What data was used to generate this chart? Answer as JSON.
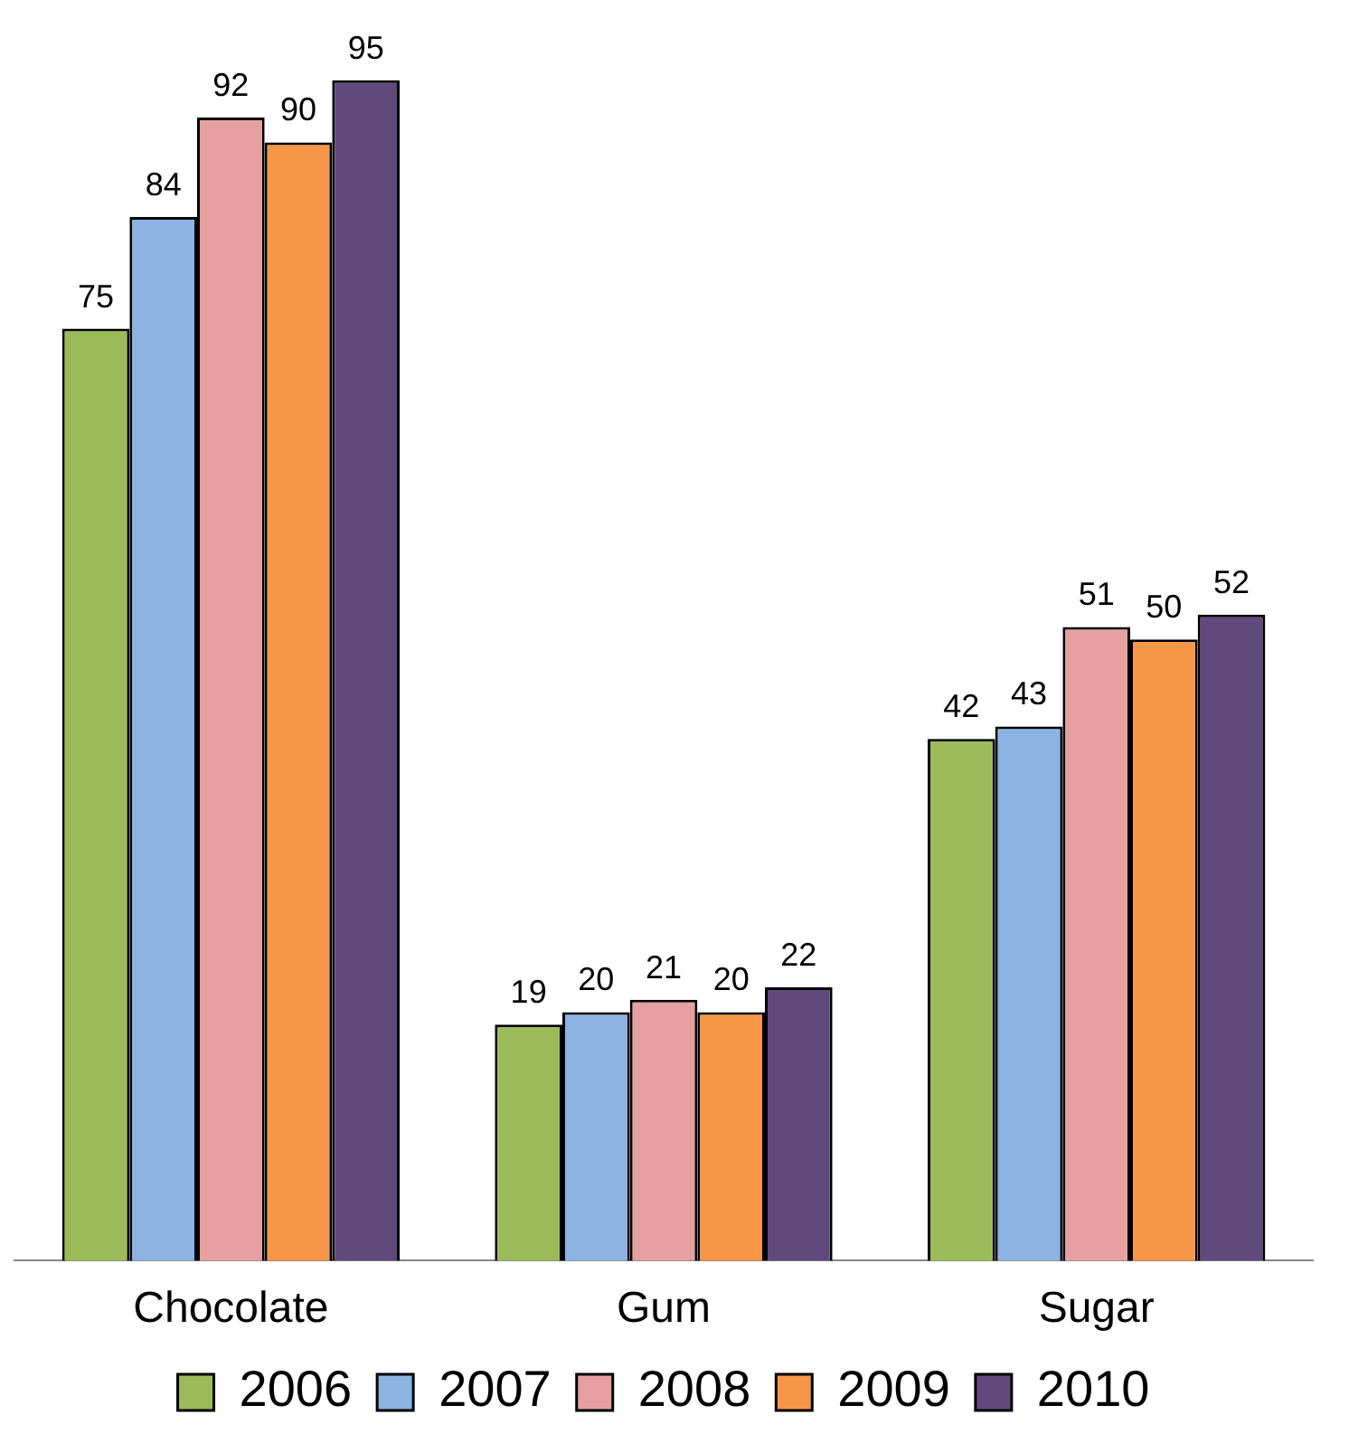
{
  "chart_data": {
    "type": "bar",
    "categories": [
      "Chocolate",
      "Gum",
      "Sugar"
    ],
    "series": [
      {
        "name": "2006",
        "color": "#9bbb59",
        "values": [
          75,
          19,
          42
        ]
      },
      {
        "name": "2007",
        "color": "#8db3e2",
        "values": [
          84,
          20,
          43
        ]
      },
      {
        "name": "2008",
        "color": "#e6a0a0",
        "values": [
          92,
          21,
          51
        ]
      },
      {
        "name": "2009",
        "color": "#f79646",
        "values": [
          90,
          20,
          50
        ]
      },
      {
        "name": "2010",
        "color": "#604a7b",
        "values": [
          95,
          22,
          52
        ]
      }
    ],
    "data_labels": true,
    "grid": false,
    "legend": "bottom",
    "tick_labels": "x"
  }
}
